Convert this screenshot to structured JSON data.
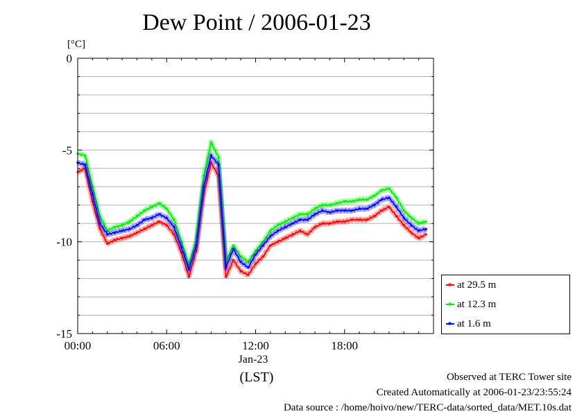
{
  "title": "Dew Point / 2006-01-23",
  "unit_label": "[°C]",
  "notes": {
    "observed": "Observed at TERC Tower site",
    "created": "Created Automatically at 2006-01-23/23:55:24",
    "source": "Data source : /home/hoivo/new/TERC-data/sorted_data/MET.10s.dat"
  },
  "x_sub": {
    "date": "Jan-23",
    "tz": "(LST)"
  },
  "chart_data": {
    "type": "line",
    "title": "Dew Point / 2006-01-23",
    "xlabel": "(LST)",
    "ylabel": "[°C]",
    "xlim": [
      0,
      24
    ],
    "ylim": [
      -15,
      0
    ],
    "x_ticks": [
      {
        "value": 0,
        "label": "00:00"
      },
      {
        "value": 6,
        "label": "06:00"
      },
      {
        "value": 12,
        "label": "12:00"
      },
      {
        "value": 18,
        "label": "18:00"
      }
    ],
    "y_ticks": [
      {
        "value": 0,
        "label": "0"
      },
      {
        "value": -5,
        "label": "-5"
      },
      {
        "value": -10,
        "label": "-10"
      },
      {
        "value": -15,
        "label": "-15"
      }
    ],
    "grid": true,
    "legend": "right",
    "x": [
      0,
      0.5,
      1,
      1.5,
      2,
      2.5,
      3,
      3.5,
      4,
      4.5,
      5,
      5.5,
      6,
      6.5,
      7,
      7.5,
      8,
      8.5,
      9,
      9.5,
      10,
      10.5,
      11,
      11.5,
      12,
      12.5,
      13,
      13.5,
      14,
      14.5,
      15,
      15.5,
      16,
      16.5,
      17,
      17.5,
      18,
      18.5,
      19,
      19.5,
      20,
      20.5,
      21,
      21.5,
      22,
      22.5,
      23,
      23.5
    ],
    "series": [
      {
        "name": "at 29.5 m",
        "color": "#ff0000",
        "values": [
          -6.2,
          -6.0,
          -7.8,
          -9.3,
          -10.1,
          -9.9,
          -9.8,
          -9.7,
          -9.5,
          -9.3,
          -9.1,
          -8.9,
          -9.1,
          -9.6,
          -10.6,
          -11.9,
          -10.5,
          -7.4,
          -5.7,
          -6.4,
          -11.9,
          -11.0,
          -11.6,
          -11.8,
          -11.2,
          -10.8,
          -10.2,
          -10.0,
          -9.8,
          -9.6,
          -9.4,
          -9.6,
          -9.2,
          -9.0,
          -9.0,
          -8.9,
          -8.9,
          -8.8,
          -8.8,
          -8.8,
          -8.6,
          -8.3,
          -8.1,
          -8.6,
          -9.1,
          -9.5,
          -9.8,
          -9.6
        ]
      },
      {
        "name": "at 12.3 m",
        "color": "#00ee00",
        "values": [
          -5.2,
          -5.3,
          -7.0,
          -8.6,
          -9.4,
          -9.2,
          -9.1,
          -8.9,
          -8.6,
          -8.3,
          -8.1,
          -7.9,
          -8.2,
          -8.8,
          -10.0,
          -11.3,
          -9.9,
          -6.4,
          -4.6,
          -5.4,
          -11.1,
          -10.2,
          -10.8,
          -11.1,
          -10.5,
          -10.0,
          -9.4,
          -9.1,
          -8.9,
          -8.7,
          -8.5,
          -8.5,
          -8.2,
          -8.0,
          -8.0,
          -7.9,
          -7.8,
          -7.8,
          -7.7,
          -7.7,
          -7.5,
          -7.2,
          -7.1,
          -7.6,
          -8.3,
          -8.7,
          -9.0,
          -8.9
        ]
      },
      {
        "name": "at 1.6 m",
        "color": "#0000ff",
        "values": [
          -5.7,
          -5.8,
          -7.4,
          -9.0,
          -9.6,
          -9.5,
          -9.4,
          -9.3,
          -9.1,
          -8.8,
          -8.7,
          -8.5,
          -8.7,
          -9.2,
          -10.3,
          -11.5,
          -10.2,
          -7.0,
          -5.3,
          -5.8,
          -11.4,
          -10.4,
          -11.1,
          -11.4,
          -10.7,
          -10.2,
          -9.7,
          -9.4,
          -9.2,
          -9.0,
          -8.8,
          -8.8,
          -8.5,
          -8.3,
          -8.4,
          -8.3,
          -8.3,
          -8.3,
          -8.2,
          -8.2,
          -8.0,
          -7.7,
          -7.6,
          -8.1,
          -8.7,
          -9.1,
          -9.4,
          -9.3
        ]
      }
    ]
  }
}
